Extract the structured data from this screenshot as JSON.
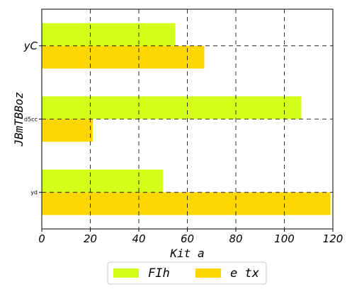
{
  "chart_data": {
    "type": "bar",
    "orientation": "horizontal",
    "categories": [
      "yd",
      "d5cc",
      "yC"
    ],
    "series": [
      {
        "name": "FIh",
        "color": "#d4ff1a",
        "values": [
          50,
          107,
          55
        ]
      },
      {
        "name": "e tx",
        "color": "#ffd700",
        "values": [
          119,
          21,
          67
        ]
      }
    ],
    "xlabel": "Kit a",
    "ylabel": "JBmTBBoz",
    "xlim": [
      0,
      120
    ],
    "xticks": [
      0,
      20,
      40,
      60,
      80,
      100,
      120
    ],
    "grid": true,
    "legend_position": "bottom-center"
  }
}
